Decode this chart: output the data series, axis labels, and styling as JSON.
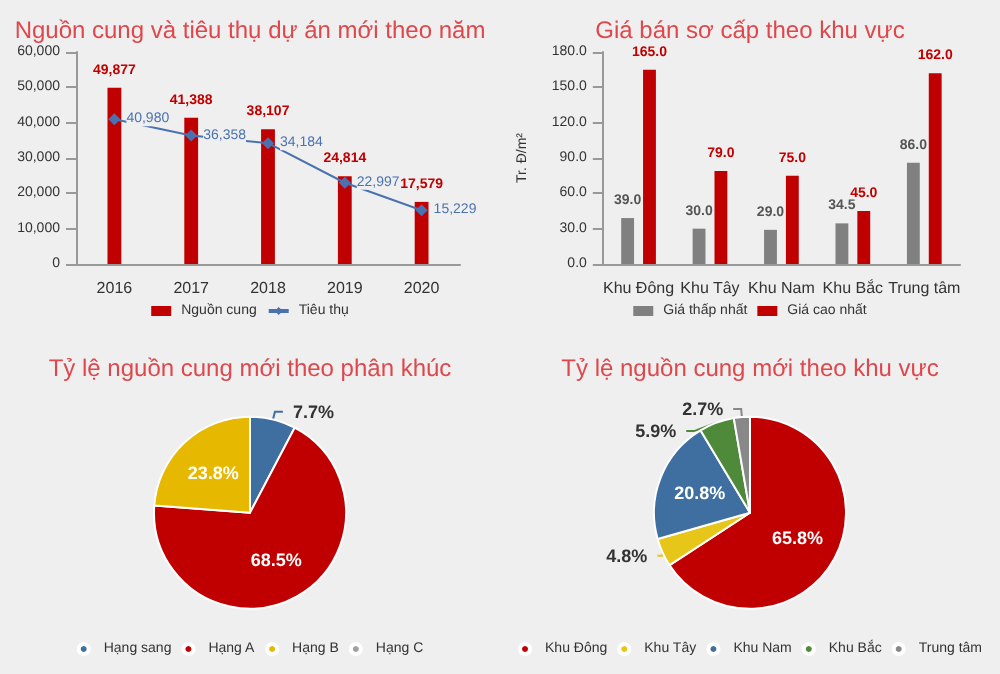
{
  "chart_data": [
    {
      "type": "bar",
      "title": "Nguồn cung và tiêu thụ dự án mới theo năm",
      "categories": [
        "2016",
        "2017",
        "2018",
        "2019",
        "2020"
      ],
      "ylim": [
        0,
        60000
      ],
      "yticks": [
        {
          "value": 0,
          "label": "0"
        },
        {
          "value": 10000,
          "label": "10,000"
        },
        {
          "value": 20000,
          "label": "20,000"
        },
        {
          "value": 30000,
          "label": "30,000"
        },
        {
          "value": 40000,
          "label": "40,000"
        },
        {
          "value": 50000,
          "label": "50,000"
        },
        {
          "value": 60000,
          "label": "60,000"
        }
      ],
      "legend": "bottom",
      "series": [
        {
          "name": "Nguồn cung",
          "type": "bar",
          "color": "#c00000",
          "values": [
            49877,
            41388,
            38107,
            24814,
            17579
          ],
          "value_labels": [
            "49,877",
            "41,388",
            "38,107",
            "24,814",
            "17,579"
          ]
        },
        {
          "name": "Tiêu thụ",
          "type": "line",
          "color": "#4a72b0",
          "marker": "diamond",
          "values": [
            40980,
            36358,
            34184,
            22997,
            15229
          ],
          "value_labels": [
            "40,980",
            "36,358",
            "34,184",
            "22,997",
            "15,229"
          ]
        }
      ]
    },
    {
      "type": "bar",
      "title": "Giá bán sơ cấp theo khu vực",
      "ylabel": "Tr. Đ/m²",
      "categories": [
        "Khu Đông",
        "Khu Tây",
        "Khu Nam",
        "Khu Bắc",
        "Trung tâm"
      ],
      "ylim": [
        0,
        180
      ],
      "yticks": [
        {
          "value": 0,
          "label": "0.0"
        },
        {
          "value": 30,
          "label": "30.0"
        },
        {
          "value": 60,
          "label": "60.0"
        },
        {
          "value": 90,
          "label": "90.0"
        },
        {
          "value": 120,
          "label": "120.0"
        },
        {
          "value": 150,
          "label": "150.0"
        },
        {
          "value": 180,
          "label": "180.0"
        }
      ],
      "legend": "bottom",
      "series": [
        {
          "name": "Giá thấp nhất",
          "color": "#808080",
          "values": [
            39,
            30,
            29,
            34.5,
            86
          ],
          "value_labels": [
            "39.0",
            "30.0",
            "29.0",
            "34.5",
            "86.0"
          ]
        },
        {
          "name": "Giá cao nhất",
          "color": "#c00000",
          "values": [
            165,
            79,
            75,
            45,
            162
          ],
          "value_labels": [
            "165.0",
            "79.0",
            "75.0",
            "45.0",
            "162.0"
          ]
        }
      ]
    },
    {
      "type": "pie",
      "title": "Tỷ lệ nguồn cung mới theo phân khúc",
      "categories": [
        "Hạng sang",
        "Hạng A",
        "Hạng B",
        "Hạng C"
      ],
      "values": [
        7.7,
        68.5,
        23.8,
        0
      ],
      "colors": [
        "#3e6fa0",
        "#c00000",
        "#e6b800",
        "#a0a0a0"
      ],
      "value_labels": [
        "7.7%",
        "68.5%",
        "23.8%",
        null
      ],
      "legend": "bottom"
    },
    {
      "type": "pie",
      "title": "Tỷ lệ nguồn cung mới theo khu vực",
      "categories": [
        "Khu Đông",
        "Khu Tây",
        "Khu Nam",
        "Khu Bắc",
        "Trung tâm"
      ],
      "values": [
        65.8,
        4.8,
        20.8,
        5.9,
        2.7
      ],
      "colors": [
        "#c00000",
        "#e6c619",
        "#3e6fa0",
        "#4e8a3a",
        "#888888"
      ],
      "value_labels": [
        "65.8%",
        "4.8%",
        "20.8%",
        "5.9%",
        "2.7%"
      ],
      "legend": "bottom"
    }
  ]
}
